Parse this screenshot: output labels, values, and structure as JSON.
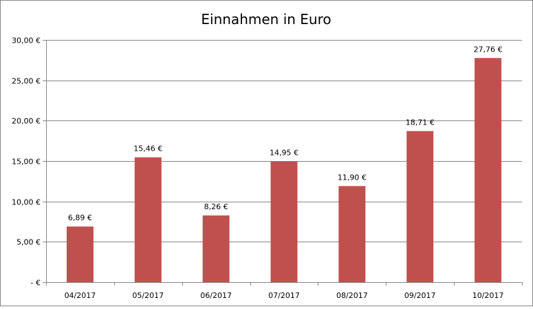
{
  "chart_data": {
    "type": "bar",
    "title": "Einnahmen in Euro",
    "xlabel": "",
    "ylabel": "",
    "categories": [
      "04/2017",
      "05/2017",
      "06/2017",
      "07/2017",
      "08/2017",
      "09/2017",
      "10/2017"
    ],
    "values": [
      6.89,
      15.46,
      8.26,
      14.95,
      11.9,
      18.71,
      27.76
    ],
    "data_labels": [
      "6,89 €",
      "15,46 €",
      "8,26 €",
      "14,95 €",
      "11,90 €",
      "18,71 €",
      "27,76 €"
    ],
    "ylim": [
      0,
      30
    ],
    "yticks": [
      0,
      5,
      10,
      15,
      20,
      25,
      30
    ],
    "ytick_labels": [
      "-   €",
      "5,00 €",
      "10,00 €",
      "15,00 €",
      "20,00 €",
      "25,00 €",
      "30,00 €"
    ],
    "grid": true,
    "legend": "none",
    "colors": {
      "bar": "#C0504D",
      "grid": "#868686",
      "axis": "#868686"
    }
  }
}
